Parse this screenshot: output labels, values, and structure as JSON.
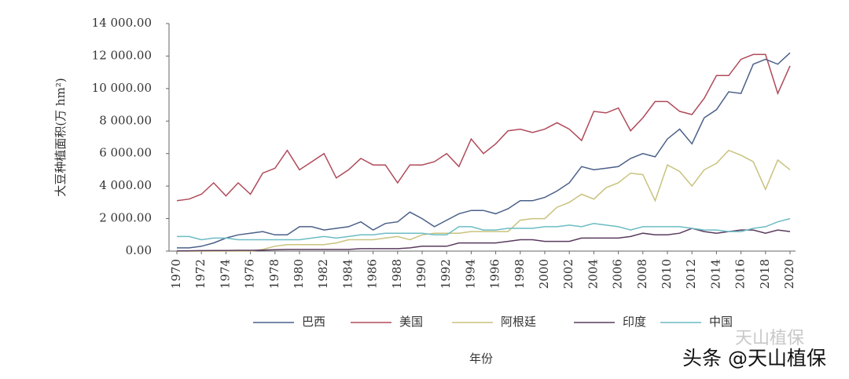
{
  "chart_data": {
    "type": "line",
    "y_label": "大豆种植面积(万 hm²)",
    "x_label": "年份",
    "x": [
      1970,
      1971,
      1972,
      1973,
      1974,
      1975,
      1976,
      1977,
      1978,
      1979,
      1980,
      1981,
      1982,
      1983,
      1984,
      1985,
      1986,
      1987,
      1988,
      1989,
      1990,
      1991,
      1992,
      1993,
      1994,
      1995,
      1996,
      1997,
      1998,
      1999,
      2000,
      2001,
      2002,
      2003,
      2004,
      2005,
      2006,
      2007,
      2008,
      2009,
      2010,
      2011,
      2012,
      2013,
      2014,
      2015,
      2016,
      2017,
      2018,
      2019,
      2020
    ],
    "xlim": [
      1970,
      2020
    ],
    "xticks": [
      1970,
      1972,
      1974,
      1976,
      1978,
      1980,
      1982,
      1984,
      1986,
      1988,
      1990,
      1992,
      1994,
      1996,
      1998,
      2000,
      2002,
      2004,
      2006,
      2008,
      2010,
      2012,
      2014,
      2016,
      2018,
      2020
    ],
    "ylim": [
      0,
      14000
    ],
    "yticks": [
      {
        "value": 0,
        "label": "0.00"
      },
      {
        "value": 2000,
        "label": "2 000.00"
      },
      {
        "value": 4000,
        "label": "4 000.00"
      },
      {
        "value": 6000,
        "label": "6 000.00"
      },
      {
        "value": 8000,
        "label": "8 000.00"
      },
      {
        "value": 10000,
        "label": "10 000.00"
      },
      {
        "value": 12000,
        "label": "12 000.00"
      },
      {
        "value": 14000,
        "label": "14 000.00"
      }
    ],
    "grid": false,
    "legend": "bottom",
    "series": [
      {
        "name": "巴西",
        "color": "#4a6088",
        "values": [
          200,
          200,
          300,
          500,
          800,
          1000,
          1100,
          1200,
          1000,
          1000,
          1500,
          1500,
          1300,
          1400,
          1500,
          1800,
          1300,
          1700,
          1800,
          2400,
          2000,
          1500,
          1900,
          2300,
          2500,
          2500,
          2300,
          2600,
          3100,
          3100,
          3300,
          3700,
          4200,
          5200,
          5000,
          5100,
          5200,
          5700,
          6000,
          5800,
          6900,
          7500,
          6600,
          8200,
          8700,
          9800,
          9700,
          11500,
          11800,
          11500,
          12200
        ]
      },
      {
        "name": "美国",
        "color": "#b04a5a",
        "values": [
          3100,
          3200,
          3500,
          4200,
          3400,
          4200,
          3500,
          4800,
          5100,
          6200,
          5000,
          5500,
          6000,
          4500,
          5000,
          5700,
          5300,
          5300,
          4200,
          5300,
          5300,
          5500,
          6000,
          5200,
          6900,
          6000,
          6600,
          7400,
          7500,
          7300,
          7500,
          7900,
          7500,
          6800,
          8600,
          8500,
          8800,
          7400,
          8200,
          9200,
          9200,
          8600,
          8400,
          9400,
          10800,
          10800,
          11800,
          12100,
          12100,
          9700,
          11400
        ]
      },
      {
        "name": "阿根廷",
        "color": "#c9c27e",
        "values": [
          0,
          0,
          0,
          0,
          0,
          0,
          0,
          100,
          300,
          400,
          400,
          400,
          400,
          500,
          700,
          700,
          700,
          800,
          900,
          700,
          1000,
          1100,
          1100,
          1100,
          1200,
          1200,
          1200,
          1200,
          1900,
          2000,
          2000,
          2700,
          3000,
          3500,
          3200,
          3900,
          4200,
          4800,
          4700,
          3100,
          5300,
          4900,
          4000,
          5000,
          5400,
          6200,
          5900,
          5500,
          3800,
          5600,
          5000
        ]
      },
      {
        "name": "印度",
        "color": "#5a3a5e",
        "values": [
          10,
          20,
          30,
          40,
          40,
          50,
          50,
          60,
          80,
          100,
          100,
          100,
          100,
          100,
          100,
          150,
          150,
          150,
          150,
          200,
          300,
          300,
          300,
          500,
          500,
          500,
          500,
          600,
          700,
          700,
          600,
          600,
          600,
          800,
          800,
          800,
          800,
          900,
          1100,
          1000,
          1000,
          1100,
          1400,
          1200,
          1100,
          1200,
          1300,
          1300,
          1100,
          1300,
          1200
        ]
      },
      {
        "name": "中国",
        "color": "#6cbcc4",
        "values": [
          900,
          900,
          700,
          800,
          800,
          700,
          700,
          700,
          700,
          700,
          700,
          800,
          900,
          800,
          900,
          1000,
          1000,
          1100,
          1100,
          1100,
          1100,
          1000,
          1000,
          1500,
          1500,
          1300,
          1300,
          1400,
          1400,
          1400,
          1500,
          1500,
          1600,
          1500,
          1700,
          1600,
          1500,
          1300,
          1500,
          1500,
          1500,
          1500,
          1400,
          1300,
          1300,
          1200,
          1200,
          1400,
          1500,
          1800,
          2000
        ]
      }
    ]
  },
  "watermark_faint": "天山植保",
  "watermark": "头条 @天山植保"
}
